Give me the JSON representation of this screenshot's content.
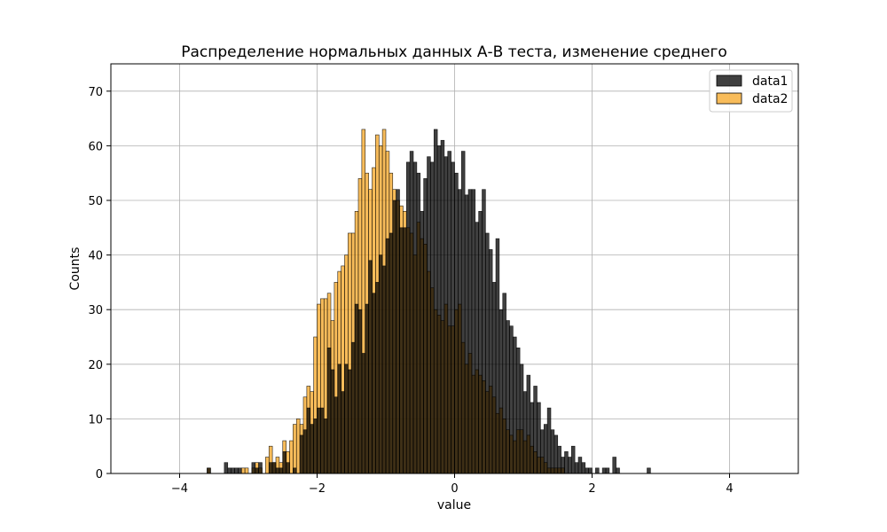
{
  "chart_data": {
    "type": "bar",
    "title": "Распределение нормальных данных А-В теста, изменение среднего",
    "xlabel": "value",
    "ylabel": "Counts",
    "xlim": [
      -5,
      5
    ],
    "ylim": [
      0,
      75
    ],
    "xticks": [
      -4,
      -2,
      0,
      2,
      4
    ],
    "yticks": [
      0,
      10,
      20,
      30,
      40,
      50,
      60,
      70
    ],
    "grid": true,
    "legend": "top-right",
    "bin_width": 0.05,
    "bin_start": -3.6,
    "series": [
      {
        "name": "data1",
        "color": "#000000",
        "alpha": 0.75,
        "values": [
          1,
          0,
          0,
          0,
          0,
          2,
          1,
          1,
          1,
          1,
          0,
          0,
          0,
          2,
          1,
          2,
          0,
          0,
          2,
          2,
          1,
          1,
          4,
          2,
          0,
          1,
          0,
          7,
          8,
          12,
          9,
          10,
          12,
          12,
          10,
          23,
          19,
          14,
          20,
          15,
          20,
          19,
          24,
          31,
          30,
          22,
          31,
          39,
          33,
          35,
          40,
          38,
          43,
          44,
          50,
          52,
          45,
          45,
          57,
          59,
          57,
          55,
          48,
          54,
          58,
          57,
          63,
          60,
          61,
          58,
          59,
          57,
          55,
          52,
          59,
          51,
          52,
          52,
          46,
          48,
          52,
          44,
          41,
          35,
          43,
          30,
          33,
          28,
          27,
          25,
          23,
          20,
          15,
          18,
          13,
          16,
          13,
          8,
          9,
          12,
          8,
          7,
          5,
          3,
          4,
          3,
          5,
          2,
          3,
          2,
          1,
          1,
          0,
          1,
          0,
          1,
          1,
          0,
          3,
          1,
          0,
          0,
          0,
          0,
          0,
          0,
          0,
          0,
          1
        ]
      },
      {
        "name": "data2",
        "color": "#f5a623",
        "alpha": 0.75,
        "values": [
          1,
          0,
          0,
          0,
          0,
          0,
          0,
          0,
          0,
          0,
          1,
          1,
          0,
          1,
          2,
          1,
          0,
          3,
          5,
          2,
          3,
          2,
          6,
          4,
          6,
          9,
          10,
          9,
          14,
          16,
          15,
          25,
          31,
          32,
          32,
          33,
          28,
          35,
          37,
          38,
          40,
          44,
          44,
          48,
          54,
          63,
          55,
          52,
          56,
          62,
          60,
          63,
          59,
          55,
          52,
          50,
          49,
          48,
          45,
          44,
          40,
          46,
          43,
          42,
          37,
          34,
          30,
          29,
          28,
          31,
          27,
          27,
          30,
          31,
          24,
          20,
          22,
          18,
          19,
          18,
          17,
          15,
          16,
          14,
          11,
          12,
          10,
          8,
          7,
          6,
          8,
          8,
          6,
          7,
          5,
          4,
          3,
          3,
          2,
          1,
          1,
          1,
          1,
          1
        ]
      }
    ]
  }
}
